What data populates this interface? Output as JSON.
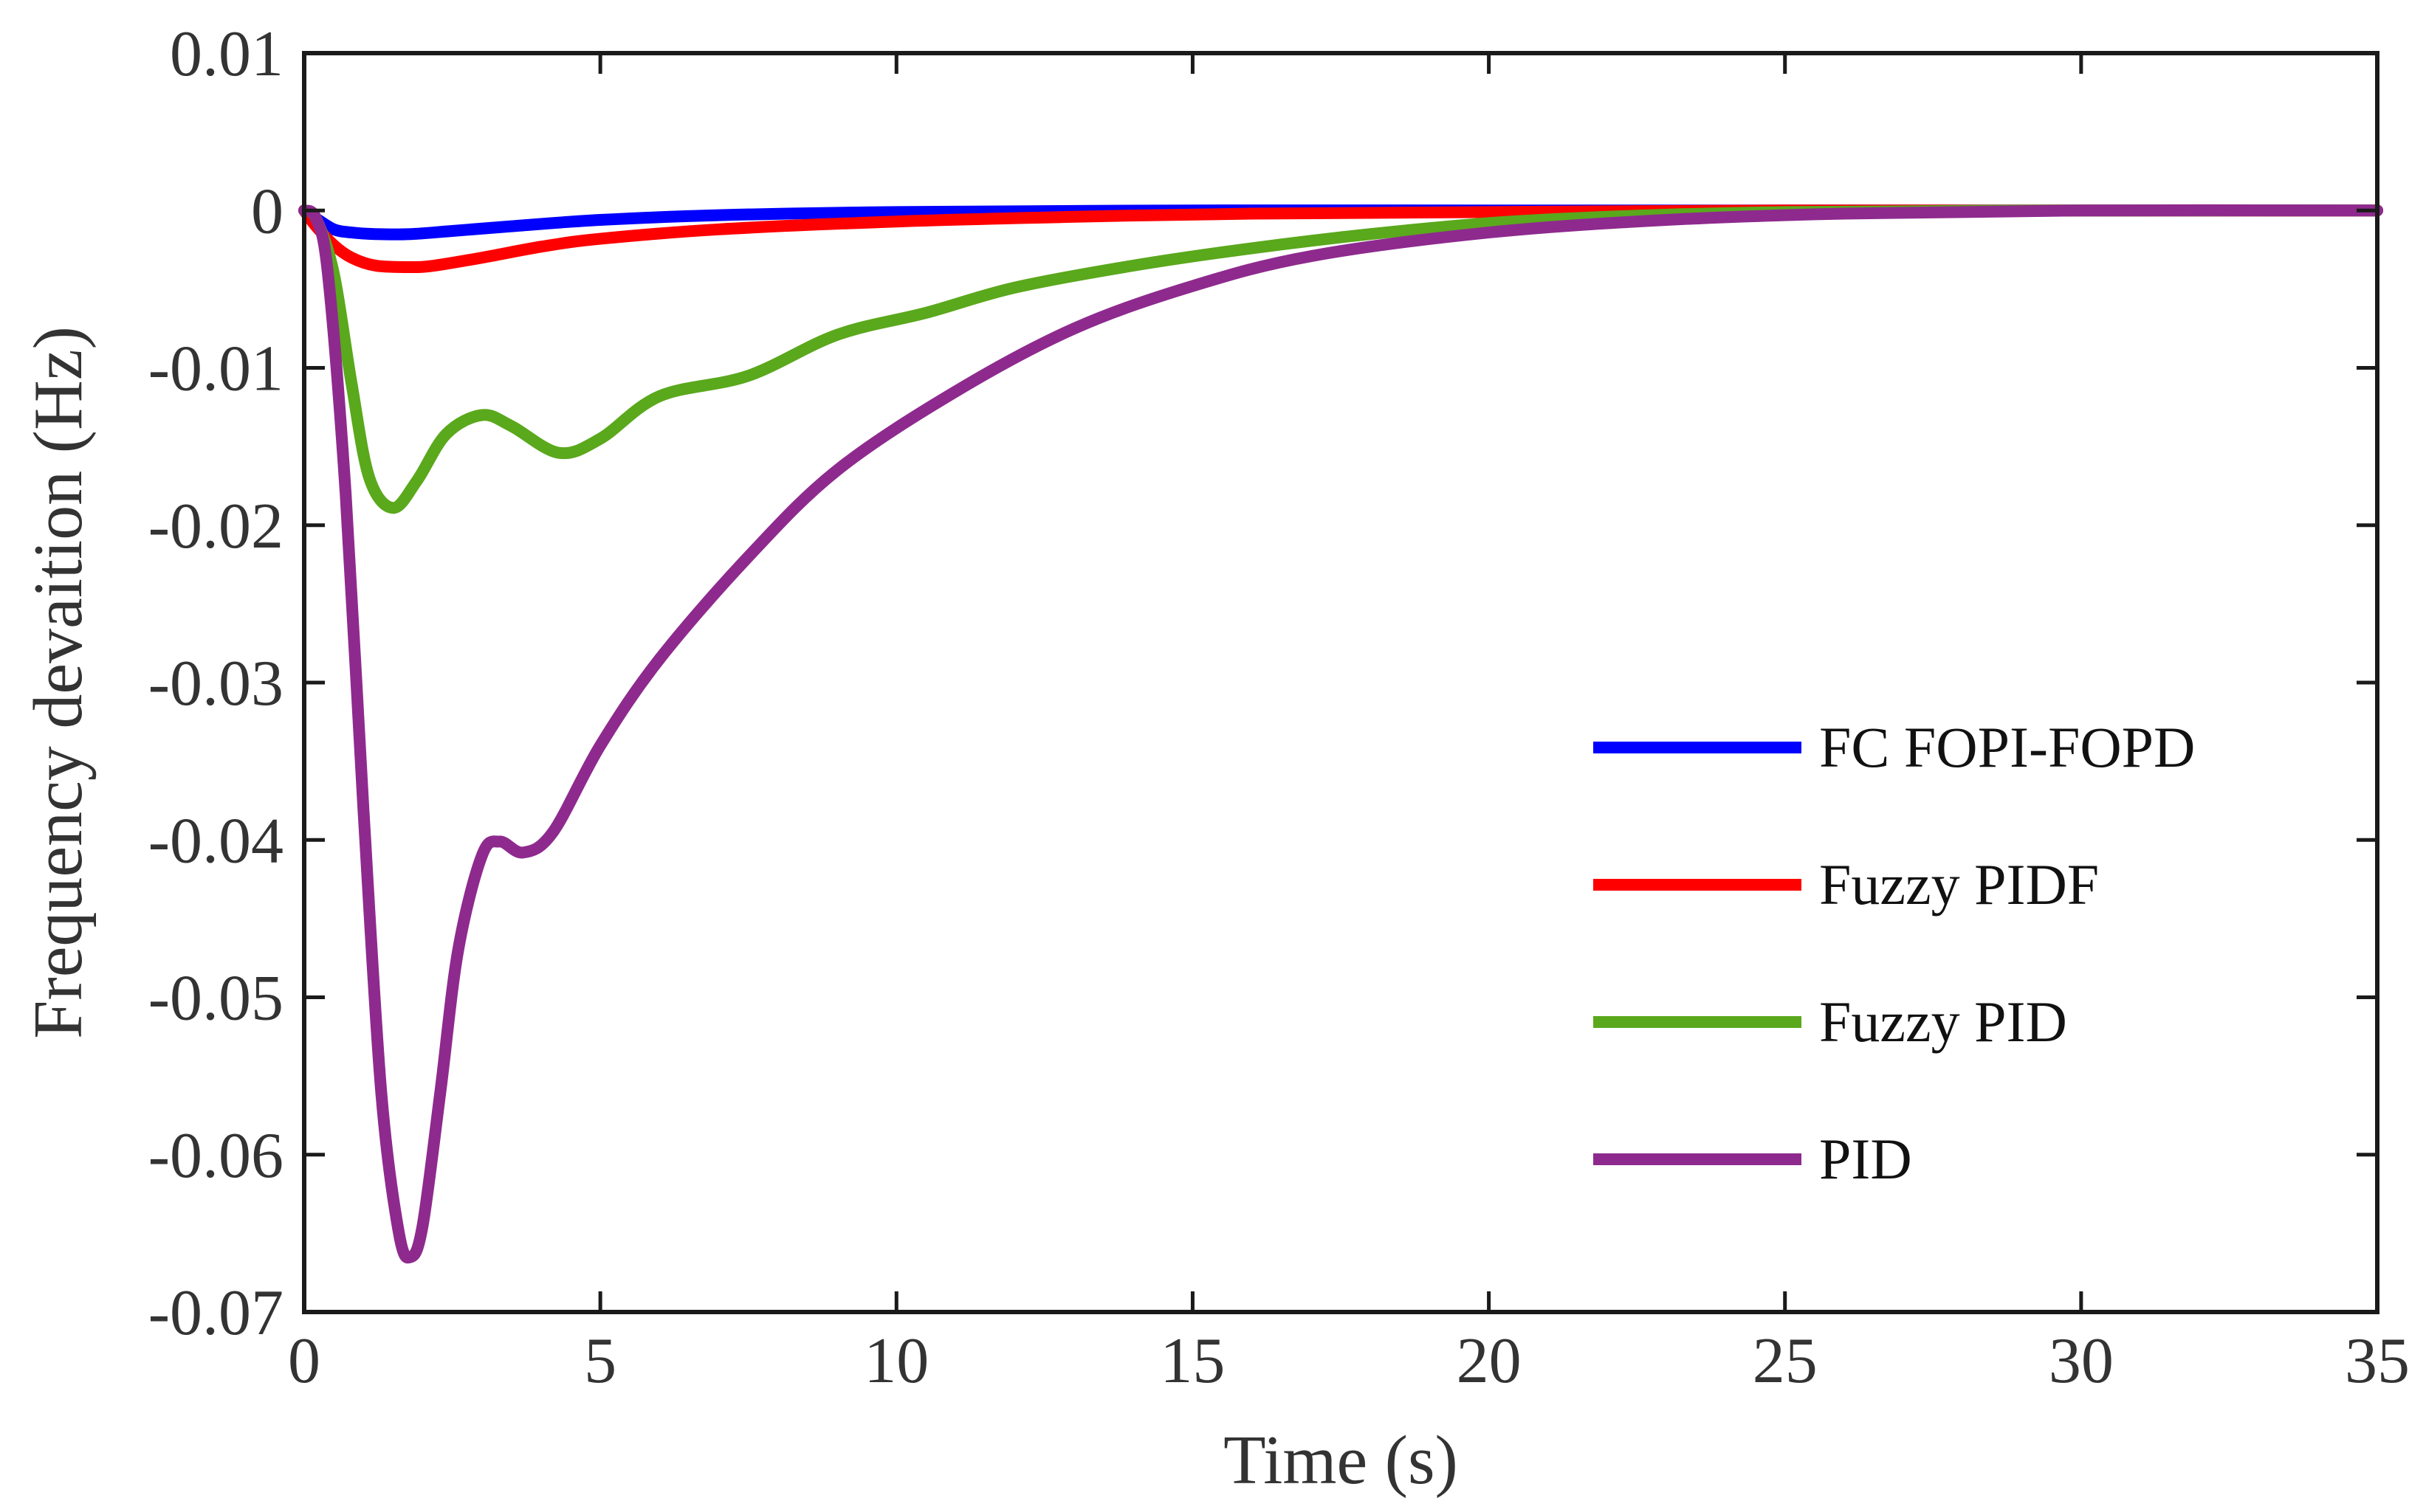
{
  "chart_data": {
    "type": "line",
    "title": "",
    "xlabel": "Time (s)",
    "ylabel": "Frequency devaition (Hz)",
    "xlim": [
      0,
      35
    ],
    "ylim": [
      -0.07,
      0.01
    ],
    "xticks": [
      0,
      5,
      10,
      15,
      20,
      25,
      30,
      35
    ],
    "xtick_labels": [
      "0",
      "5",
      "10",
      "15",
      "20",
      "25",
      "30",
      "35"
    ],
    "yticks": [
      0.01,
      0,
      -0.01,
      -0.02,
      -0.03,
      -0.04,
      -0.05,
      -0.06,
      -0.07
    ],
    "ytick_labels": [
      "0.01",
      "0",
      "-0.01",
      "-0.02",
      "-0.03",
      "-0.04",
      "-0.05",
      "-0.06",
      "-0.07"
    ],
    "grid": false,
    "legend_position": "right-middle",
    "series": [
      {
        "name": "FC FOPI-FOPD",
        "color": "#0000ff",
        "x": [
          0,
          0.2,
          0.5,
          0.8,
          1.2,
          1.8,
          2.5,
          3.5,
          5,
          7,
          10,
          15,
          20,
          25,
          30,
          35
        ],
        "y": [
          0,
          -0.0005,
          -0.0012,
          -0.0014,
          -0.0015,
          -0.0015,
          -0.0013,
          -0.001,
          -0.0006,
          -0.0003,
          -0.0001,
          0,
          0,
          0,
          0,
          0
        ]
      },
      {
        "name": "Fuzzy PIDF",
        "color": "#ff0000",
        "x": [
          0,
          0.2,
          0.5,
          0.8,
          1.2,
          1.8,
          2.2,
          3,
          4,
          5,
          7,
          10,
          13,
          16,
          20,
          25,
          30,
          35
        ],
        "y": [
          0,
          -0.001,
          -0.0022,
          -0.003,
          -0.0035,
          -0.0036,
          -0.0035,
          -0.003,
          -0.0023,
          -0.0018,
          -0.0012,
          -0.0007,
          -0.0004,
          -0.0002,
          -0.0001,
          0,
          0,
          0
        ]
      },
      {
        "name": "Fuzzy PID",
        "color": "#5aa81c",
        "x": [
          0,
          0.2,
          0.5,
          0.8,
          1.1,
          1.5,
          1.9,
          2.4,
          3,
          3.5,
          4.3,
          5,
          6,
          7.5,
          9,
          10.5,
          12,
          14,
          16,
          18,
          20,
          22,
          25,
          30,
          35
        ],
        "y": [
          0,
          -0.0005,
          -0.004,
          -0.011,
          -0.017,
          -0.0189,
          -0.0172,
          -0.0142,
          -0.013,
          -0.0137,
          -0.0154,
          -0.0145,
          -0.0118,
          -0.0105,
          -0.0079,
          -0.0065,
          -0.0049,
          -0.0035,
          -0.0024,
          -0.0015,
          -0.0008,
          -0.0004,
          -0.0001,
          0,
          0
        ]
      },
      {
        "name": "PID",
        "color": "#8e2a8e",
        "x": [
          0,
          0.2,
          0.4,
          0.7,
          1.0,
          1.3,
          1.6,
          1.8,
          2.0,
          2.3,
          2.6,
          3.0,
          3.3,
          3.7,
          4.2,
          5.0,
          6.0,
          7.5,
          9.0,
          11,
          13,
          15,
          17,
          20,
          23,
          26,
          30,
          35
        ],
        "y": [
          0,
          -0.0005,
          -0.004,
          -0.018,
          -0.038,
          -0.056,
          -0.065,
          -0.0665,
          -0.0645,
          -0.056,
          -0.047,
          -0.041,
          -0.0401,
          -0.0408,
          -0.0395,
          -0.034,
          -0.0285,
          -0.022,
          -0.0165,
          -0.0115,
          -0.0075,
          -0.0048,
          -0.0029,
          -0.0014,
          -0.0006,
          -0.0002,
          0,
          0
        ]
      }
    ]
  }
}
